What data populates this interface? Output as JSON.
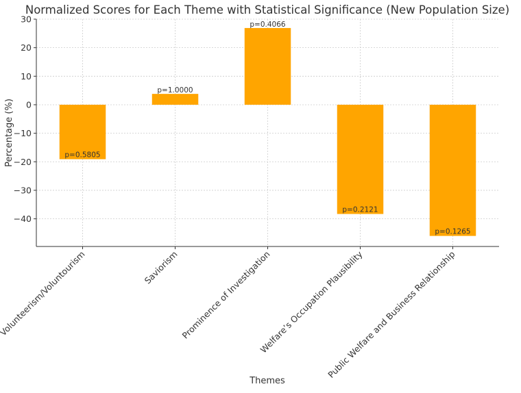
{
  "chart_data": {
    "type": "bar",
    "title": "Normalized Scores for Each Theme with Statistical Significance (New Population Size)",
    "xlabel": "Themes",
    "ylabel": "Percentage (%)",
    "categories": [
      "Volunteerism/Voluntourism",
      "Saviorism",
      "Prominence of Investigation",
      "Welfare’s Occupation Plausibility",
      "Public Welfare and Business Relationship"
    ],
    "values": [
      -19.1,
      3.8,
      26.9,
      -38.3,
      -46.0
    ],
    "annotations": [
      "p=0.5805",
      "p=1.0000",
      "p=0.4066",
      "p=0.2121",
      "p=0.1265"
    ],
    "yticks": [
      30,
      20,
      10,
      0,
      -10,
      -20,
      -30,
      -40
    ],
    "ylim": [
      -49.7,
      30
    ],
    "grid": true,
    "bar_color": "#FFA500"
  }
}
